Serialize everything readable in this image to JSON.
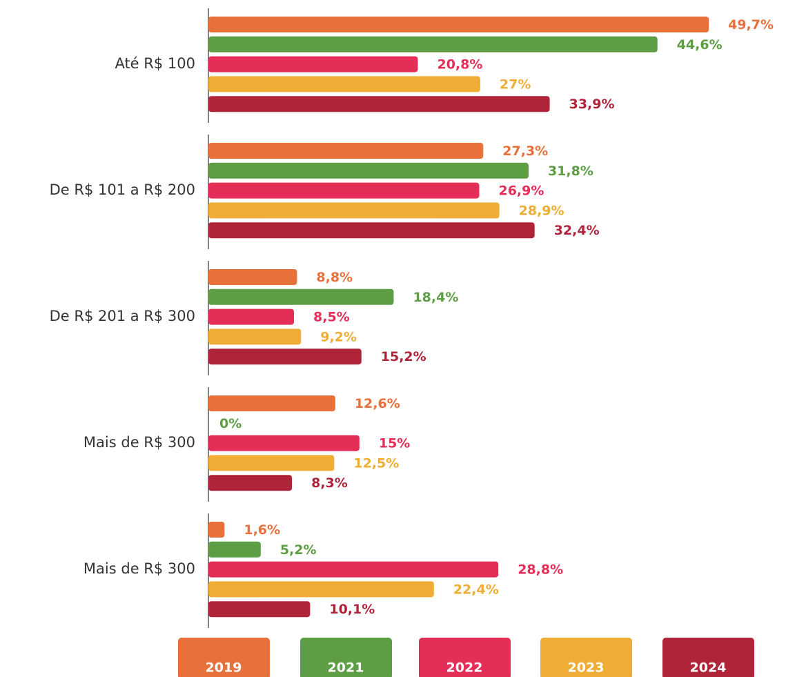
{
  "chart_data": {
    "type": "bar",
    "orientation": "horizontal",
    "categories": [
      "Até R$ 100",
      "De R$ 101 a R$ 200",
      "De R$ 201 a R$ 300",
      "Mais de R$ 300",
      "Mais de R$ 300"
    ],
    "series": [
      {
        "name": "2019",
        "color": "#e8703a",
        "values": [
          49.7,
          27.3,
          8.8,
          12.6,
          1.6
        ],
        "value_labels": [
          "49,7%",
          "27,3%",
          "8,8%",
          "12,6%",
          "1,6%"
        ]
      },
      {
        "name": "2021",
        "color": "#5d9e45",
        "values": [
          44.6,
          31.8,
          18.4,
          0,
          5.2
        ],
        "value_labels": [
          "44,6%",
          "31,8%",
          "18,4%",
          "0%",
          "5,2%"
        ]
      },
      {
        "name": "2022",
        "color": "#e52e57",
        "values": [
          20.8,
          26.9,
          8.5,
          15,
          28.8
        ],
        "value_labels": [
          "20,8%",
          "26,9%",
          "8,5%",
          "15%",
          "28,8%"
        ]
      },
      {
        "name": "2023",
        "color": "#f0ad36",
        "values": [
          27,
          28.9,
          9.2,
          12.5,
          22.4
        ],
        "value_labels": [
          "27%",
          "28,9%",
          "9,2%",
          "12,5%",
          "22,4%"
        ]
      },
      {
        "name": "2024",
        "color": "#b0243a",
        "values": [
          33.9,
          32.4,
          15.2,
          8.3,
          10.1
        ],
        "value_labels": [
          "33,9%",
          "32,4%",
          "15,2%",
          "8,3%",
          "10,1%"
        ]
      }
    ],
    "legend": "bottom"
  }
}
